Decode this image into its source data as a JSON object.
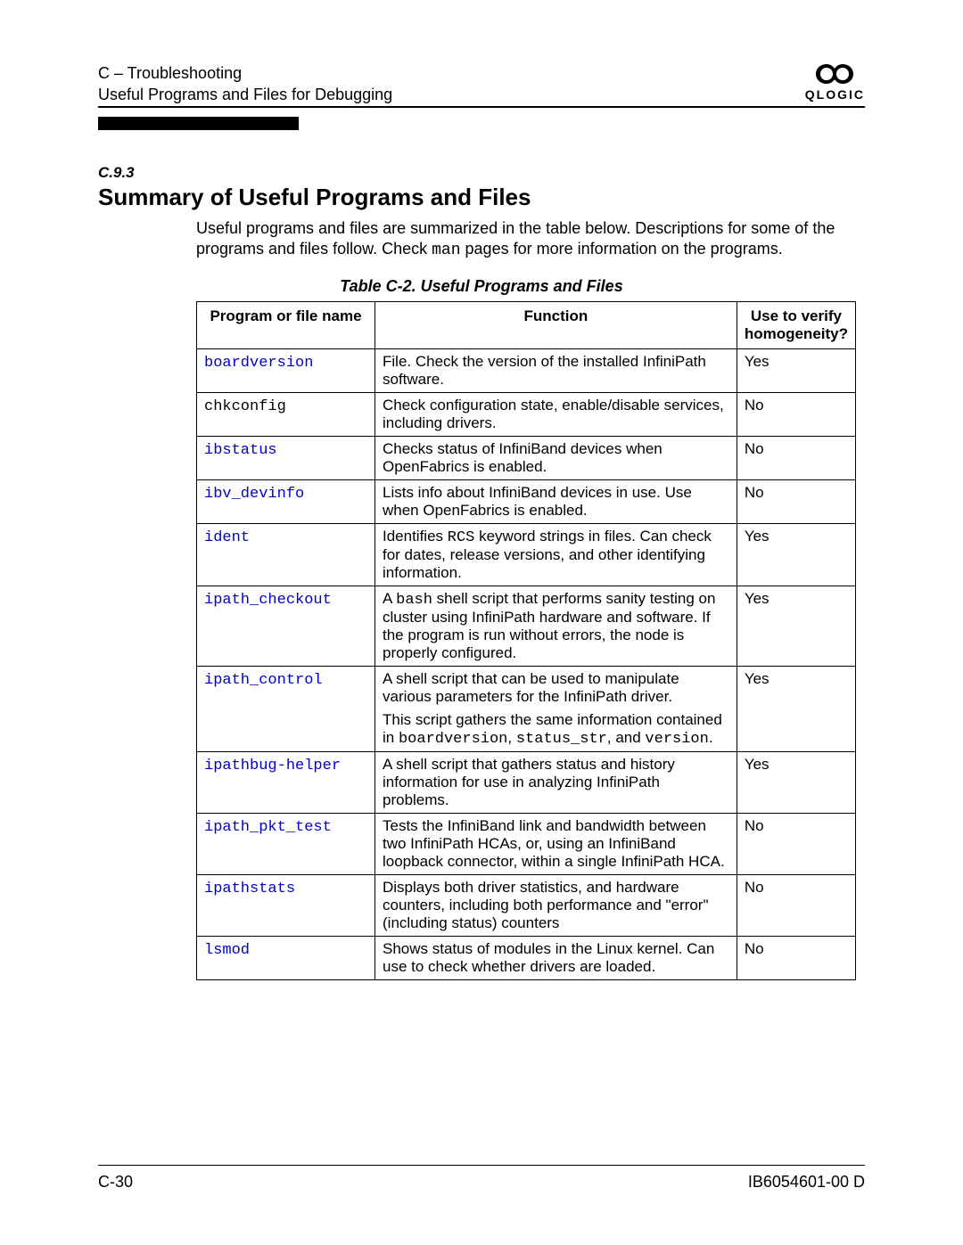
{
  "header": {
    "breadcrumb": "C – Troubleshooting",
    "subtitle": "Useful Programs and Files for Debugging",
    "brand": "QLOGIC"
  },
  "section": {
    "number": "C.9.3",
    "title": "Summary of Useful Programs and Files",
    "intro_pre": "Useful programs and files are summarized in the table below. Descriptions for some of the programs and files follow. Check ",
    "intro_code": "man",
    "intro_post": " pages for more information on the programs."
  },
  "table": {
    "caption": "Table C-2. Useful Programs and Files",
    "headers": {
      "name": "Program or file name",
      "function": "Function",
      "verify_line1": "Use to verify",
      "verify_line2": "homogeneity?"
    },
    "rows": [
      {
        "name": "boardversion",
        "is_link": true,
        "fn": [
          {
            "t": "File. Check the version of the installed InfiniPath software."
          }
        ],
        "verify": "Yes"
      },
      {
        "name": "chkconfig",
        "is_link": false,
        "fn": [
          {
            "t": "Check configuration state, enable/disable services, including drivers."
          }
        ],
        "verify": "No"
      },
      {
        "name": "ibstatus",
        "is_link": true,
        "fn": [
          {
            "t": "Checks status of InfiniBand devices when OpenFabrics is enabled."
          }
        ],
        "verify": "No"
      },
      {
        "name": "ibv_devinfo",
        "is_link": true,
        "fn": [
          {
            "t": "Lists info about InfiniBand devices in use. Use when OpenFabrics is enabled."
          }
        ],
        "verify": "No"
      },
      {
        "name": "ident",
        "is_link": true,
        "fn": [
          {
            "t": "Identifies "
          },
          {
            "c": "RCS"
          },
          {
            "t": " keyword strings in files. Can check for dates, release versions, and other identifying information."
          }
        ],
        "verify": "Yes"
      },
      {
        "name": "ipath_checkout",
        "is_link": true,
        "fn": [
          {
            "t": "A "
          },
          {
            "c": "bash"
          },
          {
            "t": " shell script that performs sanity testing on cluster using InfiniPath hardware and software. If the program is run without errors, the node is properly configured."
          }
        ],
        "verify": "Yes"
      },
      {
        "name": "ipath_control",
        "is_link": true,
        "fn": [
          {
            "t": "A shell script that can be used to manipulate various parameters for the InfiniPath driver."
          },
          {
            "br": true
          },
          {
            "t": "This script gathers the same information contained in "
          },
          {
            "c": "boardversion"
          },
          {
            "t": ", "
          },
          {
            "c": "status_str"
          },
          {
            "t": ", and "
          },
          {
            "c": "version"
          },
          {
            "t": "."
          }
        ],
        "verify": "Yes"
      },
      {
        "name": "ipathbug-helper",
        "is_link": true,
        "fn": [
          {
            "t": "A shell script that gathers status and history information for use in analyzing InfiniPath problems."
          }
        ],
        "verify": "Yes"
      },
      {
        "name": "ipath_pkt_test",
        "is_link": true,
        "fn": [
          {
            "t": "Tests the InfiniBand link and bandwidth between two InfiniPath HCAs, or, using an InfiniBand loopback connector, within a single InfiniPath HCA."
          }
        ],
        "verify": "No"
      },
      {
        "name": "ipathstats",
        "is_link": true,
        "fn": [
          {
            "t": "Displays both driver statistics, and hardware counters, including both performance and \"error\" (including status) counters"
          }
        ],
        "verify": "No"
      },
      {
        "name": "lsmod",
        "is_link": true,
        "fn": [
          {
            "t": "Shows status of modules in the Linux kernel. Can use to check whether drivers are loaded."
          }
        ],
        "verify": "No"
      }
    ]
  },
  "footer": {
    "page": "C-30",
    "docid": "IB6054601-00  D"
  },
  "colors": {
    "link": "#0000cc",
    "text": "#000000",
    "rule": "#000000",
    "bg": "#ffffff"
  }
}
